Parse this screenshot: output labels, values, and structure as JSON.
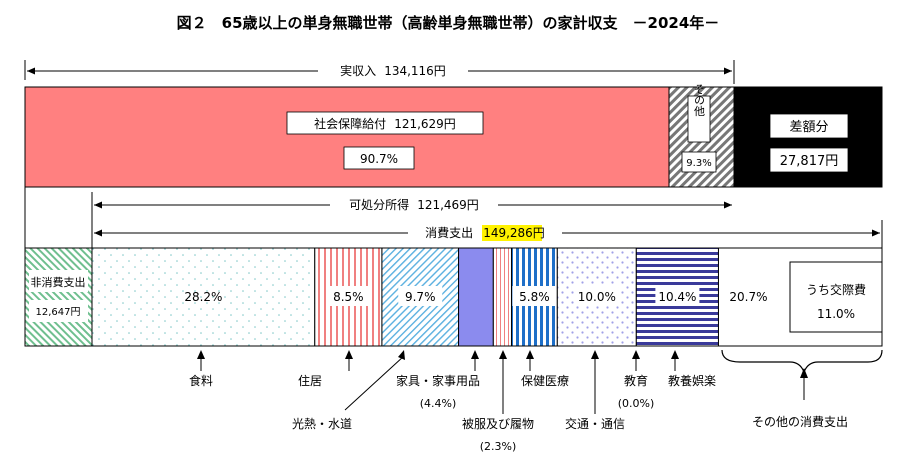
{
  "chart_data": {
    "type": "bar",
    "title": "図２　65歳以上の単身無職世帯（高齢単身無職世帯）の家計収支　－2024年－",
    "income": {
      "label": "実収入",
      "value_text": "134,116円",
      "segments": [
        {
          "key": "social",
          "label": "社会保障給付",
          "value_text": "121,629円",
          "pct_text": "90.7%",
          "pct": 90.7,
          "color": "#FF8080"
        },
        {
          "key": "other",
          "label": "その他",
          "pct_text": "9.3%",
          "pct": 9.3,
          "color": "#888888"
        },
        {
          "key": "deficit",
          "label": "差額分",
          "value_text": "27,817円",
          "color": "#000000"
        }
      ]
    },
    "disposable": {
      "label": "可処分所得",
      "value_text": "121,469円"
    },
    "consumption": {
      "label": "消費支出",
      "value_text": "149,286円",
      "highlight_color": "#FFF200"
    },
    "non_consumption": {
      "label": "非消費支出",
      "value_text": "12,647円",
      "color": "#6FBF8F"
    },
    "expenditure_items": [
      {
        "key": "food",
        "label": "食料",
        "pct": 28.2,
        "pct_text": "28.2%",
        "color": "#7FC8C8"
      },
      {
        "key": "housing",
        "label": "住居",
        "pct": 8.5,
        "pct_text": "8.5%",
        "color": "#F08080"
      },
      {
        "key": "utilities",
        "label": "光熱・水道",
        "pct": 9.7,
        "pct_text": "9.7%",
        "color": "#5AB0E0"
      },
      {
        "key": "furniture",
        "label": "家具・家事用品",
        "pct": 4.4,
        "pct_text": "(4.4%)",
        "color": "#8B8BEE"
      },
      {
        "key": "clothing",
        "label": "被服及び履物",
        "pct": 2.3,
        "pct_text": "(2.3%)",
        "color": "#F08080"
      },
      {
        "key": "medical",
        "label": "保健医療",
        "pct": 5.8,
        "pct_text": "5.8%",
        "color": "#1E6FC8"
      },
      {
        "key": "transport",
        "label": "交通・通信",
        "pct": 10.0,
        "pct_text": "10.0%",
        "color": "#9090E0"
      },
      {
        "key": "education",
        "label": "教育",
        "pct": 0.0,
        "pct_text": "(0.0%)"
      },
      {
        "key": "recreation",
        "label": "教養娯楽",
        "pct": 10.4,
        "pct_text": "10.4%",
        "color": "#3A3A9A"
      },
      {
        "key": "other",
        "label": "その他の消費支出",
        "pct": 20.7,
        "pct_text": "20.7%",
        "sub_label": "うち交際費",
        "sub_pct_text": "11.0%"
      }
    ]
  }
}
